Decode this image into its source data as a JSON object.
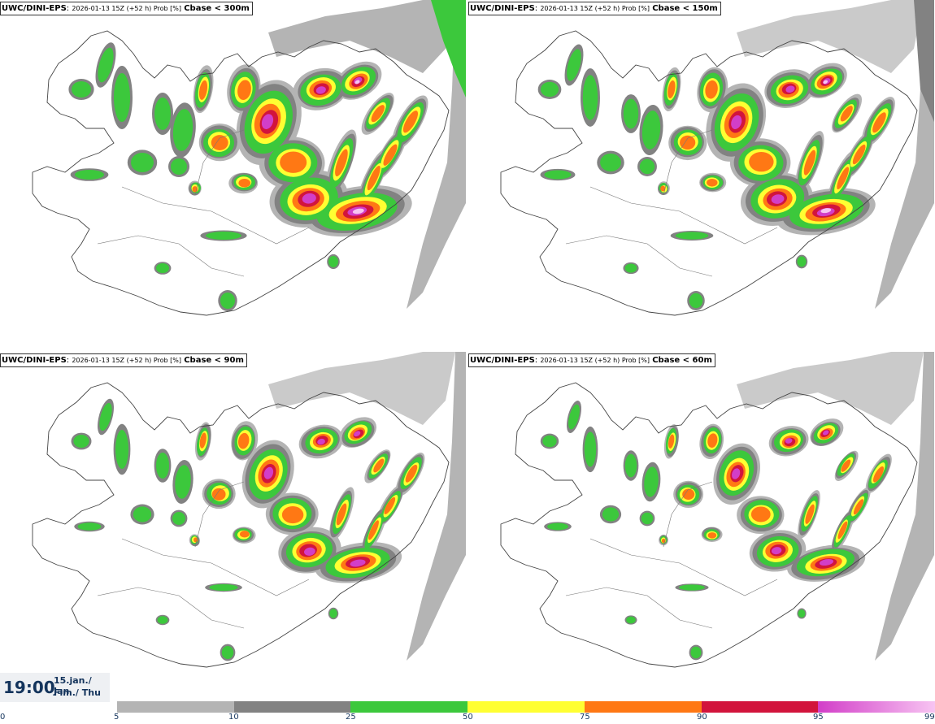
{
  "panels": [
    {
      "model": "UWC/DINI-EPS",
      "meta": "2026-01-13 15Z (+52 h) Prob [%]",
      "param": "Cbase < 300m"
    },
    {
      "model": "UWC/DINI-EPS",
      "meta": "2026-01-13 15Z (+52 h) Prob [%]",
      "param": "Cbase < 150m"
    },
    {
      "model": "UWC/DINI-EPS",
      "meta": "2026-01-13 15Z (+52 h) Prob [%]",
      "param": "Cbase < 90m"
    },
    {
      "model": "UWC/DINI-EPS",
      "meta": "2026-01-13 15Z (+52 h) Prob [%]",
      "param": "Cbase < 60m"
    }
  ],
  "time": {
    "clock": "19:00",
    "date_line1": "15.jan./ Jan",
    "date_line2": "Fim./ Thu"
  },
  "legend": {
    "ticks": [
      "0",
      "5",
      "10",
      "25",
      "50",
      "75",
      "90",
      "95",
      "99"
    ],
    "colors": {
      "5-10": "#b4b4b4",
      "10-25": "#828282",
      "25-50": "#3cc83c",
      "50-75": "#ffff32",
      "75-90": "#ff7814",
      "90-95": "#d2143c",
      "95-99": "#d23ec8",
      "99": "#f7c4f2"
    }
  }
}
